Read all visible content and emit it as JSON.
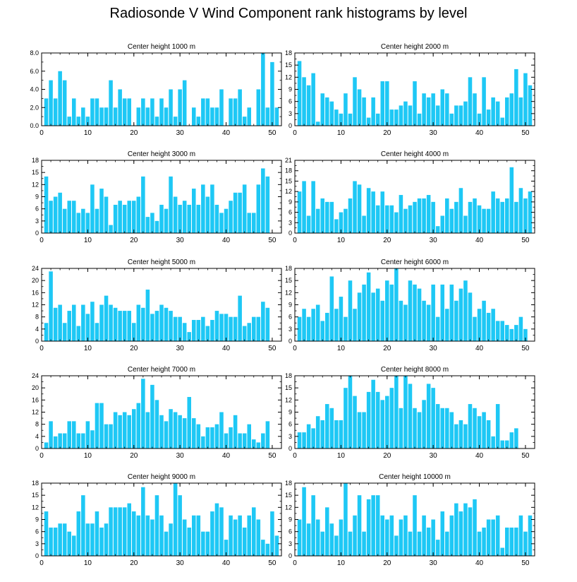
{
  "title": "Radiosonde V Wind Component rank histograms by level",
  "colors": {
    "bar": "#1ec8f5",
    "axis": "#000000"
  },
  "chart_data": [
    {
      "type": "bar",
      "title": "Center height 1000 m",
      "xlim": [
        0,
        52
      ],
      "xticks": [
        0,
        10,
        20,
        30,
        40,
        50
      ],
      "ylim": [
        0,
        8
      ],
      "yticks": [
        "0.0",
        "2.0",
        "4.0",
        "6.0",
        "8.0"
      ],
      "values": [
        3,
        5,
        3,
        6,
        5,
        1,
        3,
        1,
        2,
        1,
        3,
        3,
        2,
        2,
        5,
        2,
        4,
        3,
        3,
        0,
        2,
        3,
        2,
        3,
        1,
        3,
        2,
        4,
        1,
        4,
        5,
        0,
        2,
        1,
        3,
        3,
        2,
        2,
        4,
        0,
        3,
        3,
        4,
        1,
        2,
        0,
        4,
        8,
        2,
        7,
        2
      ]
    },
    {
      "type": "bar",
      "title": "Center height 2000 m",
      "xlim": [
        0,
        52
      ],
      "xticks": [
        0,
        10,
        20,
        30,
        40,
        50
      ],
      "ylim": [
        0,
        18
      ],
      "yticks": [
        "0",
        "3",
        "6",
        "9",
        "12",
        "15",
        "18"
      ],
      "values": [
        16,
        12,
        10,
        13,
        1,
        8,
        7,
        6,
        4,
        3,
        8,
        3,
        12,
        9,
        7,
        2,
        7,
        3,
        11,
        11,
        4,
        4,
        5,
        6,
        5,
        11,
        3,
        8,
        7,
        8,
        5,
        9,
        8,
        3,
        5,
        5,
        6,
        12,
        8,
        3,
        12,
        4,
        7,
        6,
        2,
        7,
        8,
        14,
        7,
        13,
        10
      ]
    },
    {
      "type": "bar",
      "title": "Center height 3000 m",
      "xlim": [
        0,
        52
      ],
      "xticks": [
        0,
        10,
        20,
        30,
        40,
        50
      ],
      "ylim": [
        0,
        18
      ],
      "yticks": [
        "0",
        "3",
        "6",
        "9",
        "12",
        "15",
        "18"
      ],
      "values": [
        14,
        8,
        9,
        10,
        6,
        8,
        8,
        5,
        6,
        5,
        12,
        6,
        11,
        9,
        2,
        7,
        8,
        7,
        8,
        8,
        9,
        14,
        4,
        5,
        3,
        7,
        6,
        14,
        9,
        7,
        8,
        7,
        11,
        7,
        12,
        9,
        12,
        7,
        5,
        6,
        8,
        10,
        10,
        12,
        5,
        5,
        12,
        16,
        14
      ]
    },
    {
      "type": "bar",
      "title": "Center height 4000 m",
      "xlim": [
        0,
        52
      ],
      "xticks": [
        0,
        10,
        20,
        30,
        40,
        50
      ],
      "ylim": [
        0,
        21
      ],
      "yticks": [
        "0",
        "3",
        "6",
        "9",
        "12",
        "15",
        "18",
        "21"
      ],
      "values": [
        12,
        15,
        5,
        15,
        7,
        10,
        9,
        9,
        4,
        6,
        7,
        10,
        15,
        14,
        5,
        13,
        12,
        8,
        12,
        8,
        8,
        6,
        11,
        7,
        8,
        9,
        10,
        10,
        11,
        9,
        2,
        5,
        10,
        7,
        9,
        13,
        5,
        9,
        10,
        8,
        7,
        7,
        12,
        10,
        9,
        10,
        19,
        9,
        13,
        10,
        12
      ]
    },
    {
      "type": "bar",
      "title": "Center height 5000 m",
      "xlim": [
        0,
        52
      ],
      "xticks": [
        0,
        10,
        20,
        30,
        40,
        50
      ],
      "ylim": [
        0,
        24
      ],
      "yticks": [
        "0",
        "4",
        "8",
        "12",
        "16",
        "20",
        "24"
      ],
      "values": [
        6,
        23,
        11,
        12,
        6,
        10,
        12,
        5,
        12,
        9,
        13,
        6,
        12,
        15,
        12,
        11,
        10,
        10,
        10,
        6,
        12,
        11,
        17,
        9,
        10,
        12,
        11,
        10,
        8,
        8,
        6,
        3,
        7,
        7,
        8,
        5,
        7,
        10,
        9,
        9,
        8,
        8,
        15,
        5,
        6,
        8,
        8,
        13,
        11
      ]
    },
    {
      "type": "bar",
      "title": "Center height 6000 m",
      "xlim": [
        0,
        52
      ],
      "xticks": [
        0,
        10,
        20,
        30,
        40,
        50
      ],
      "ylim": [
        0,
        18
      ],
      "yticks": [
        "0",
        "3",
        "6",
        "9",
        "12",
        "15",
        "18"
      ],
      "values": [
        6,
        8,
        6,
        8,
        9,
        5,
        7,
        16,
        8,
        11,
        6,
        15,
        8,
        12,
        14,
        17,
        12,
        13,
        10,
        15,
        14,
        18,
        10,
        9,
        15,
        14,
        13,
        10,
        9,
        14,
        6,
        14,
        8,
        14,
        10,
        13,
        15,
        12,
        6,
        8,
        10,
        7,
        8,
        5,
        5,
        4,
        3,
        4,
        6,
        3
      ]
    },
    {
      "type": "bar",
      "title": "Center height 7000 m",
      "xlim": [
        0,
        52
      ],
      "xticks": [
        0,
        10,
        20,
        30,
        40,
        50
      ],
      "ylim": [
        0,
        24
      ],
      "yticks": [
        "0",
        "4",
        "8",
        "12",
        "16",
        "20",
        "24"
      ],
      "values": [
        2,
        9,
        4,
        5,
        5,
        9,
        9,
        5,
        5,
        9,
        6,
        15,
        15,
        8,
        8,
        12,
        11,
        12,
        11,
        13,
        15,
        23,
        12,
        21,
        16,
        11,
        9,
        13,
        12,
        11,
        10,
        17,
        10,
        8,
        4,
        7,
        7,
        8,
        12,
        5,
        7,
        11,
        5,
        5,
        8,
        3,
        2,
        5,
        9
      ]
    },
    {
      "type": "bar",
      "title": "Center height 8000 m",
      "xlim": [
        0,
        52
      ],
      "xticks": [
        0,
        10,
        20,
        30,
        40,
        50
      ],
      "ylim": [
        0,
        18
      ],
      "yticks": [
        "0",
        "3",
        "6",
        "9",
        "12",
        "15",
        "18"
      ],
      "values": [
        4,
        4,
        6,
        5,
        8,
        7,
        11,
        10,
        7,
        7,
        15,
        18,
        13,
        9,
        9,
        14,
        17,
        14,
        12,
        13,
        15,
        18,
        10,
        18,
        16,
        10,
        9,
        12,
        16,
        15,
        11,
        10,
        10,
        9,
        6,
        7,
        6,
        11,
        10,
        8,
        9,
        7,
        3,
        11,
        2,
        2,
        4,
        5
      ]
    },
    {
      "type": "bar",
      "title": "Center height 9000 m",
      "xlim": [
        0,
        52
      ],
      "xticks": [
        0,
        10,
        20,
        30,
        40,
        50
      ],
      "ylim": [
        0,
        18
      ],
      "yticks": [
        "0",
        "3",
        "6",
        "9",
        "12",
        "15",
        "18"
      ],
      "values": [
        11,
        7,
        7,
        8,
        8,
        6,
        5,
        11,
        15,
        8,
        8,
        11,
        7,
        8,
        12,
        12,
        12,
        12,
        13,
        11,
        10,
        17,
        10,
        9,
        15,
        10,
        6,
        8,
        18,
        15,
        9,
        7,
        10,
        10,
        6,
        6,
        11,
        13,
        12,
        4,
        10,
        9,
        10,
        7,
        10,
        12,
        9,
        4,
        3,
        11,
        5
      ]
    },
    {
      "type": "bar",
      "title": "Center height 10000 m",
      "xlim": [
        0,
        52
      ],
      "xticks": [
        0,
        10,
        20,
        30,
        40,
        50
      ],
      "ylim": [
        0,
        18
      ],
      "yticks": [
        "0",
        "3",
        "6",
        "9",
        "12",
        "15",
        "18"
      ],
      "values": [
        9,
        17,
        8,
        15,
        9,
        6,
        12,
        8,
        5,
        9,
        18,
        6,
        10,
        15,
        6,
        14,
        15,
        15,
        10,
        9,
        10,
        5,
        9,
        10,
        6,
        15,
        6,
        10,
        7,
        9,
        4,
        11,
        6,
        10,
        13,
        11,
        13,
        12,
        14,
        6,
        7,
        9,
        9,
        10,
        2,
        7,
        7,
        7,
        10,
        6,
        10
      ]
    }
  ]
}
